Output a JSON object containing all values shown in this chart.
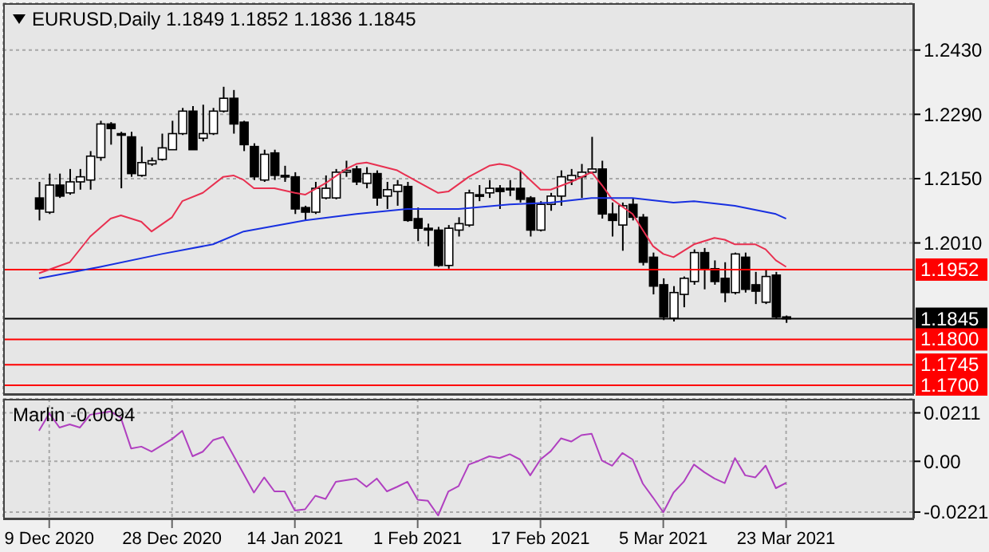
{
  "chart_data": [
    {
      "type": "candlestick",
      "title": "EURUSD,Daily 1.1849 1.1852 1.1836 1.1845",
      "categories": [
        null,
        null,
        null,
        null,
        null,
        null,
        null,
        null,
        null,
        null,
        null,
        null,
        null,
        null,
        null,
        null,
        null,
        null,
        null,
        null,
        null,
        null,
        null,
        null,
        null,
        null,
        null,
        null,
        null,
        null,
        null,
        null,
        null,
        null,
        null,
        null,
        null,
        null,
        null,
        null,
        null,
        null,
        null,
        null,
        null,
        null,
        null,
        null,
        null,
        null,
        null,
        null,
        null,
        null,
        null,
        null,
        null,
        null,
        null,
        null,
        null,
        null,
        null,
        null,
        null,
        null,
        null,
        null,
        null,
        null,
        null,
        null,
        null,
        null
      ],
      "ohlc": [
        [
          1.2108,
          1.2143,
          1.2059,
          1.2084
        ],
        [
          1.2077,
          1.2161,
          1.2073,
          1.2136
        ],
        [
          1.2136,
          1.2161,
          1.2108,
          1.2112
        ],
        [
          1.2119,
          1.2171,
          1.2115,
          1.2143
        ],
        [
          1.2143,
          1.2171,
          1.2126,
          1.2154
        ],
        [
          1.2147,
          1.221,
          1.2126,
          1.2199
        ],
        [
          1.2196,
          1.2276,
          1.2189,
          1.2269
        ],
        [
          1.2269,
          1.2273,
          1.2224,
          1.2259
        ],
        [
          1.2248,
          1.2252,
          1.2129,
          1.2245
        ],
        [
          1.2241,
          1.2252,
          1.2154,
          1.2161
        ],
        [
          1.2157,
          1.222,
          1.2154,
          1.2185
        ],
        [
          1.2182,
          1.2196,
          1.2178,
          1.2189
        ],
        [
          1.2192,
          1.2248,
          1.2189,
          1.2217
        ],
        [
          1.2213,
          1.2276,
          1.2213,
          1.2248
        ],
        [
          1.2248,
          1.2304,
          1.2245,
          1.2297
        ],
        [
          1.2297,
          1.2308,
          1.2213,
          1.2213
        ],
        [
          1.2238,
          1.2311,
          1.2231,
          1.2248
        ],
        [
          1.2248,
          1.2304,
          1.2245,
          1.2297
        ],
        [
          1.2297,
          1.235,
          1.2294,
          1.2325
        ],
        [
          1.2325,
          1.2343,
          1.2248,
          1.2269
        ],
        [
          1.2273,
          1.2276,
          1.221,
          1.2224
        ],
        [
          1.222,
          1.2227,
          1.2147,
          1.2154
        ],
        [
          1.2147,
          1.2213,
          1.2143,
          1.2203
        ],
        [
          1.2206,
          1.2213,
          1.2147,
          1.2157
        ],
        [
          1.2157,
          1.2178,
          1.2143,
          1.2154
        ],
        [
          1.2154,
          1.2164,
          1.2073,
          1.2084
        ],
        [
          1.2087,
          1.2091,
          1.2059,
          1.2077
        ],
        [
          1.2077,
          1.2143,
          1.2073,
          1.2129
        ],
        [
          1.2108,
          1.2157,
          1.2105,
          1.2129
        ],
        [
          1.2108,
          1.2171,
          1.2105,
          1.2164
        ],
        [
          1.2164,
          1.2189,
          1.2154,
          1.2168
        ],
        [
          1.2171,
          1.2178,
          1.2136,
          1.2143
        ],
        [
          1.214,
          1.2175,
          1.2129,
          1.2161
        ],
        [
          1.2161,
          1.2168,
          1.2091,
          1.2108
        ],
        [
          1.2112,
          1.2143,
          1.2084,
          1.2126
        ],
        [
          1.2122,
          1.2147,
          1.2091,
          1.2136
        ],
        [
          1.2133,
          1.2143,
          1.2056,
          1.2059
        ],
        [
          1.2063,
          1.2087,
          1.2014,
          1.2042
        ],
        [
          1.2042,
          1.2052,
          1.2003,
          1.2038
        ],
        [
          1.2038,
          1.2045,
          1.1958,
          1.1961
        ],
        [
          1.1961,
          1.2049,
          1.1954,
          1.2042
        ],
        [
          1.2038,
          1.2066,
          1.2024,
          1.2052
        ],
        [
          1.2049,
          1.2126,
          1.2045,
          1.2119
        ],
        [
          1.2115,
          1.2136,
          1.2101,
          1.2112
        ],
        [
          1.2119,
          1.2147,
          1.2108,
          1.2129
        ],
        [
          1.2129,
          1.2136,
          1.2084,
          1.2122
        ],
        [
          1.2129,
          1.2147,
          1.2112,
          1.2126
        ],
        [
          1.2129,
          1.2168,
          1.2098,
          1.2105
        ],
        [
          1.2108,
          1.2112,
          1.2024,
          1.2038
        ],
        [
          1.2038,
          1.2101,
          1.2035,
          1.2094
        ],
        [
          1.2094,
          1.2119,
          1.208,
          1.2112
        ],
        [
          1.2112,
          1.2168,
          1.2091,
          1.2154
        ],
        [
          1.2147,
          1.2171,
          1.2136,
          1.2157
        ],
        [
          1.2154,
          1.2182,
          1.2108,
          1.2164
        ],
        [
          1.2164,
          1.2241,
          1.2161,
          1.2171
        ],
        [
          1.2171,
          1.2189,
          1.2063,
          1.2073
        ],
        [
          1.2073,
          1.2098,
          1.2024,
          1.2059
        ],
        [
          1.2049,
          1.2098,
          1.1993,
          1.2091
        ],
        [
          1.2094,
          1.2108,
          1.2059,
          1.2066
        ],
        [
          1.2066,
          1.2073,
          1.1961,
          1.1968
        ],
        [
          1.1979,
          1.1989,
          1.1898,
          1.1916
        ],
        [
          1.1919,
          1.1933,
          1.1842,
          1.1849
        ],
        [
          1.1846,
          1.1916,
          1.1839,
          1.1902
        ],
        [
          1.1898,
          1.1937,
          1.187,
          1.1933
        ],
        [
          1.1926,
          1.1996,
          1.1919,
          1.1989
        ],
        [
          1.1989,
          1.1999,
          1.1909,
          1.1954
        ],
        [
          1.1954,
          1.1972,
          1.1919,
          1.1926
        ],
        [
          1.1933,
          1.1968,
          1.1881,
          1.1902
        ],
        [
          1.1902,
          1.1989,
          1.1898,
          1.1986
        ],
        [
          1.1979,
          1.1989,
          1.1902,
          1.1909
        ],
        [
          1.1919,
          1.1947,
          1.1877,
          1.1905
        ],
        [
          1.1881,
          1.1951,
          1.1877,
          1.1937
        ],
        [
          1.194,
          1.1947,
          1.1846,
          1.1849
        ],
        [
          1.1849,
          1.1852,
          1.1836,
          1.1845
        ]
      ],
      "series": [
        {
          "type": "line",
          "color": "#e83050",
          "values": [
            1.1944,
            null,
            null,
            1.1968,
            null,
            1.2024,
            null,
            1.2063,
            1.207,
            null,
            1.2056,
            1.2035,
            null,
            1.2066,
            1.2101,
            null,
            1.2119,
            null,
            1.2154,
            1.2157,
            1.2147,
            1.2129,
            null,
            1.2129,
            null,
            1.2119,
            1.2115,
            null,
            1.214,
            null,
            1.2171,
            1.2182,
            1.2185,
            null,
            null,
            1.2168,
            null,
            1.2143,
            null,
            1.2119,
            1.2122,
            null,
            1.2154,
            null,
            1.2178,
            1.2182,
            1.2178,
            1.2168,
            1.2147,
            1.2126,
            1.2126,
            null,
            1.2143,
            null,
            1.2164,
            1.2136,
            1.2105,
            null,
            1.2073,
            1.2038,
            1.2003,
            1.1986,
            1.1979,
            null,
            1.2007,
            null,
            1.2021,
            1.2017,
            1.2007,
            null,
            1.2007,
            1.1996,
            1.1972,
            1.1958
          ]
        },
        {
          "type": "line",
          "color": "#1830e0",
          "values": [
            1.1933,
            null,
            null,
            null,
            null,
            null,
            1.1958,
            null,
            null,
            null,
            null,
            null,
            1.1986,
            null,
            null,
            null,
            null,
            1.2007,
            null,
            null,
            1.2035,
            null,
            null,
            null,
            null,
            null,
            1.2059,
            null,
            null,
            null,
            null,
            1.2073,
            null,
            null,
            null,
            null,
            1.2084,
            null,
            null,
            null,
            null,
            1.2084,
            null,
            null,
            null,
            null,
            1.2094,
            null,
            null,
            null,
            1.2098,
            null,
            null,
            null,
            1.2108,
            null,
            null,
            null,
            1.2108,
            null,
            null,
            null,
            1.2098,
            null,
            1.2101,
            null,
            null,
            null,
            1.2091,
            null,
            null,
            null,
            1.2073,
            1.2063
          ]
        }
      ],
      "ylim": [
        1.1681,
        1.2532
      ],
      "yticks": [
        {
          "value": 1.243,
          "label": "1.2430"
        },
        {
          "value": 1.229,
          "label": "1.2290"
        },
        {
          "value": 1.215,
          "label": "1.2150"
        },
        {
          "value": 1.201,
          "label": "1.2010"
        }
      ],
      "ref_lines": [
        {
          "axis": "y",
          "value": 1.1952,
          "label": "1.1952",
          "color": "#ff0000"
        },
        {
          "axis": "y",
          "value": 1.1845,
          "label": "1.1845",
          "color": "#000000"
        },
        {
          "axis": "y",
          "value": 1.18,
          "label": "1.1800",
          "color": "#ff0000"
        },
        {
          "axis": "y",
          "value": 1.1745,
          "label": "1.1745",
          "color": "#ff0000"
        },
        {
          "axis": "y",
          "value": 1.17,
          "label": "1.1700",
          "color": "#ff0000"
        }
      ],
      "grid": true,
      "tick_labels": "y"
    },
    {
      "type": "line",
      "title": "Marlin -0.0094",
      "categories": [
        null,
        "9 Dec 2020",
        null,
        null,
        null,
        null,
        null,
        null,
        null,
        null,
        null,
        null,
        null,
        "28 Dec 2020",
        null,
        null,
        null,
        null,
        null,
        null,
        null,
        null,
        null,
        null,
        null,
        "14 Jan 2021",
        null,
        null,
        null,
        null,
        null,
        null,
        null,
        null,
        null,
        null,
        null,
        "1 Feb 2021",
        null,
        null,
        null,
        null,
        null,
        null,
        null,
        null,
        null,
        null,
        null,
        "17 Feb 2021",
        null,
        null,
        null,
        null,
        null,
        null,
        null,
        null,
        null,
        null,
        null,
        "5 Mar 2021",
        null,
        null,
        null,
        null,
        null,
        null,
        null,
        null,
        null,
        null,
        null,
        "23 Mar 2021"
      ],
      "series": [
        {
          "color": "#b040c0",
          "values": [
            0.0133,
            0.0209,
            0.0147,
            0.0161,
            0.0147,
            0.0203,
            null,
            0.0217,
            0.0189,
            0.0056,
            0.0064,
            0.0042,
            null,
            0.0097,
            0.0133,
            0.0022,
            0.0042,
            0.0092,
            0.0106,
            null,
            null,
            -0.0136,
            -0.007,
            -0.0131,
            -0.0131,
            -0.0214,
            -0.0209,
            -0.015,
            -0.0164,
            -0.0089,
            null,
            -0.0075,
            -0.0111,
            -0.0075,
            -0.0131,
            -0.0111,
            -0.0089,
            -0.0167,
            -0.0172,
            -0.0236,
            -0.0131,
            -0.0108,
            -0.0014,
            0.0003,
            0.0022,
            0.0014,
            0.0031,
            0.0008,
            -0.0061,
            0.0008,
            0.0044,
            0.01,
            0.0086,
            0.0114,
            0.012,
            0.0003,
            -0.0019,
            0.0036,
            0.0008,
            -0.0097,
            -0.0158,
            -0.0222,
            -0.0136,
            -0.0089,
            -0.0014,
            -0.0047,
            -0.0075,
            -0.0095,
            0.0014,
            -0.0061,
            -0.007,
            -0.0019,
            -0.0117,
            -0.0094
          ]
        }
      ],
      "ylim": [
        -0.0249,
        0.0272
      ],
      "yticks": [
        0.0211,
        {
          "value": 0,
          "label": "0.00"
        },
        -0.0221
      ],
      "grid": true
    }
  ]
}
